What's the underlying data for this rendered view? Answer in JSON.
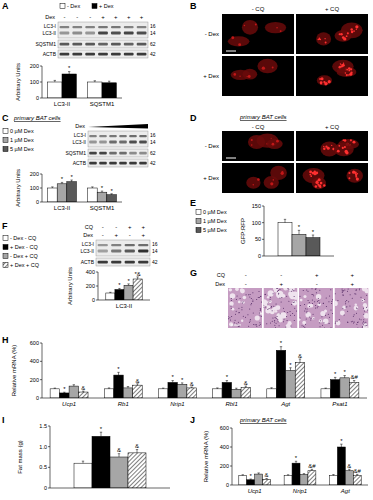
{
  "panels": {
    "A": {
      "letter": "A",
      "row_label": "Dex",
      "lanes": [
        "-",
        "-",
        "-",
        "+",
        "+",
        "+",
        "+"
      ],
      "proteins": [
        "LC3-I",
        "LC3-II",
        "SQSTM1",
        "ACTB"
      ],
      "mw": [
        "16",
        "14",
        "62",
        "42"
      ]
    },
    "B": {
      "letter": "B",
      "columns": [
        "- CQ",
        "+ CQ"
      ],
      "rows": [
        "- Dex",
        "+ Dex"
      ]
    },
    "C": {
      "letter": "C",
      "subtitle": "primary BAT cells",
      "row_label": "Dex",
      "proteins": [
        "LC3-I",
        "LC3-II",
        "SQSTM1",
        "ACTB"
      ],
      "mw": [
        "16",
        "14",
        "62",
        "42"
      ]
    },
    "D": {
      "letter": "D",
      "subtitle": "primary BAT cells",
      "columns": [
        "- CQ",
        "+ CQ"
      ],
      "rows": [
        "- Dex",
        "+ Dex"
      ]
    },
    "E": {
      "letter": "E"
    },
    "F": {
      "letter": "F",
      "rows": [
        {
          "label": "CQ",
          "lanes": [
            "-",
            "-",
            "+",
            "+"
          ]
        },
        {
          "label": "Dex",
          "lanes": [
            "-",
            "+",
            "-",
            "+"
          ]
        }
      ],
      "proteins": [
        "LC3-I",
        "LC3-II",
        "ACTB"
      ],
      "mw": [
        "16",
        "14",
        "42"
      ]
    },
    "G": {
      "letter": "G",
      "rows": [
        {
          "label": "CQ",
          "lanes": [
            "-",
            "-",
            "+",
            "+"
          ]
        },
        {
          "label": "Dex",
          "lanes": [
            "-",
            "+",
            "-",
            "+"
          ]
        }
      ]
    },
    "H": {
      "letter": "H"
    },
    "I": {
      "letter": "I"
    },
    "J": {
      "letter": "J",
      "subtitle": "primary BAT cells"
    }
  },
  "chart_data": [
    {
      "type": "bar",
      "y_label": "Arbitrary Units",
      "categories": [
        "LC3-II",
        "SQSTM1"
      ],
      "series": [
        {
          "name": "- Dex",
          "color": "#ffffff",
          "values": [
            100,
            100
          ],
          "errors": [
            10,
            8
          ]
        },
        {
          "name": "+ Dex",
          "color": "#000000",
          "values": [
            150,
            95
          ],
          "errors": [
            15,
            10
          ],
          "annotations": [
            "*",
            null
          ]
        }
      ],
      "ylim": [
        0,
        200
      ],
      "yticks": [
        0,
        100,
        200
      ]
    },
    {
      "type": "bar",
      "y_label": "Arbitrary Units",
      "categories": [
        "LC3-II",
        "SQSTM1"
      ],
      "series": [
        {
          "name": "0 µM Dex",
          "color": "#ffffff",
          "values": [
            100,
            100
          ],
          "errors": [
            8,
            8
          ]
        },
        {
          "name": "1 µM Dex",
          "color": "#a6a6a6",
          "values": [
            130,
            70
          ],
          "errors": [
            10,
            8
          ],
          "annotations": [
            "*",
            "*"
          ]
        },
        {
          "name": "5 µM Dex",
          "color": "#595959",
          "values": [
            145,
            52
          ],
          "errors": [
            12,
            7
          ],
          "annotations": [
            "*",
            "*"
          ]
        }
      ],
      "ylim": [
        0,
        200
      ],
      "yticks": [
        0,
        100,
        200
      ]
    },
    {
      "type": "bar",
      "y_label": "GFP:RFP",
      "categories": [
        null
      ],
      "series": [
        {
          "name": "0 µM Dex",
          "color": "#ffffff",
          "values": [
            100
          ],
          "errors": [
            10
          ]
        },
        {
          "name": "1 µM Dex",
          "color": "#a6a6a6",
          "values": [
            65
          ],
          "errors": [
            12
          ],
          "annotations": [
            "*"
          ]
        },
        {
          "name": "5 µM Dex",
          "color": "#595959",
          "values": [
            55
          ],
          "errors": [
            8
          ],
          "annotations": [
            "*"
          ]
        }
      ],
      "ylim": [
        0,
        150
      ],
      "yticks": [
        0,
        50,
        100,
        150
      ]
    },
    {
      "type": "bar",
      "y_label": "Arbitrary Units",
      "categories": [
        "LC3-II"
      ],
      "series": [
        {
          "name": "- Dex - CQ",
          "color": "#ffffff",
          "values": [
            100
          ],
          "errors": [
            10
          ]
        },
        {
          "name": "+ Dex - CQ",
          "color": "#000000",
          "values": [
            150
          ],
          "errors": [
            15
          ],
          "annotations": [
            "*"
          ]
        },
        {
          "name": "- Dex + CQ",
          "color": "#a6a6a6",
          "values": [
            210
          ],
          "errors": [
            20
          ],
          "annotations": [
            "*"
          ]
        },
        {
          "name": "+ Dex + CQ",
          "color": "#ffffff",
          "values": [
            300
          ],
          "errors": [
            30
          ],
          "annotations": [
            "*&"
          ]
        }
      ],
      "ylim": [
        0,
        400
      ],
      "yticks": [
        0,
        200,
        400
      ]
    },
    {
      "type": "bar",
      "y_label": "Relative mRNA (%)",
      "categories": [
        "Ucp1",
        "Rb1",
        "Nrip1",
        "Rbl1",
        "Agt",
        "Psat1"
      ],
      "series": [
        {
          "color": "#ffffff",
          "values": [
            100,
            100,
            100,
            100,
            100,
            100
          ],
          "errors": [
            8,
            10,
            8,
            10,
            12,
            8
          ]
        },
        {
          "color": "#000000",
          "values": [
            55,
            250,
            170,
            170,
            520,
            200
          ],
          "errors": [
            8,
            30,
            20,
            20,
            40,
            25
          ],
          "annotations": [
            "*",
            "*",
            "*",
            "*",
            "*",
            "*"
          ]
        },
        {
          "color": "#a6a6a6",
          "values": [
            130,
            110,
            150,
            95,
            300,
            220
          ],
          "errors": [
            15,
            15,
            15,
            12,
            30,
            25
          ],
          "annotations": [
            null,
            null,
            "*",
            null,
            "*",
            "*"
          ]
        },
        {
          "color": "#ffffff",
          "values": [
            65,
            140,
            110,
            115,
            390,
            170
          ],
          "errors": [
            10,
            15,
            10,
            15,
            35,
            20
          ],
          "annotations": [
            "&",
            "&",
            "&",
            "&",
            "&",
            "&#"
          ]
        }
      ],
      "ylim": [
        0,
        600
      ],
      "yticks": [
        0,
        200,
        400,
        600
      ]
    },
    {
      "type": "bar",
      "y_label": "Fat mass (g)",
      "categories": [
        null
      ],
      "series": [
        {
          "color": "#ffffff",
          "values": [
            0.6
          ],
          "errors": [
            0.05
          ]
        },
        {
          "color": "#000000",
          "values": [
            1.25
          ],
          "errors": [
            0.1
          ],
          "annotations": [
            "*"
          ]
        },
        {
          "color": "#a6a6a6",
          "values": [
            0.75
          ],
          "errors": [
            0.08
          ],
          "annotations": [
            "&"
          ]
        },
        {
          "color": "#ffffff",
          "values": [
            0.85
          ],
          "errors": [
            0.08
          ],
          "annotations": [
            "&"
          ]
        }
      ],
      "ylim": [
        0,
        1.5
      ],
      "yticks": [
        0,
        0.5,
        {
          "value": 1,
          "label": "1.0"
        },
        1.5
      ]
    },
    {
      "type": "bar",
      "y_label": "Relative mRNA (%)",
      "categories": [
        "Ucp1",
        "Nrip1",
        "Agt"
      ],
      "series": [
        {
          "color": "#ffffff",
          "values": [
            100,
            100,
            100
          ],
          "errors": [
            8,
            8,
            10
          ]
        },
        {
          "color": "#000000",
          "values": [
            55,
            230,
            400
          ],
          "errors": [
            8,
            20,
            30
          ],
          "annotations": [
            "*",
            "*",
            "*"
          ]
        },
        {
          "color": "#a6a6a6",
          "values": [
            115,
            110,
            150
          ],
          "errors": [
            12,
            10,
            15
          ],
          "annotations": [
            null,
            null,
            "&"
          ]
        },
        {
          "color": "#ffffff",
          "values": [
            60,
            150,
            100
          ],
          "errors": [
            8,
            15,
            12
          ],
          "annotations": [
            "&",
            "&#",
            "&#"
          ]
        }
      ],
      "ylim": [
        0,
        600
      ],
      "yticks": [
        0,
        200,
        400,
        600
      ]
    }
  ]
}
